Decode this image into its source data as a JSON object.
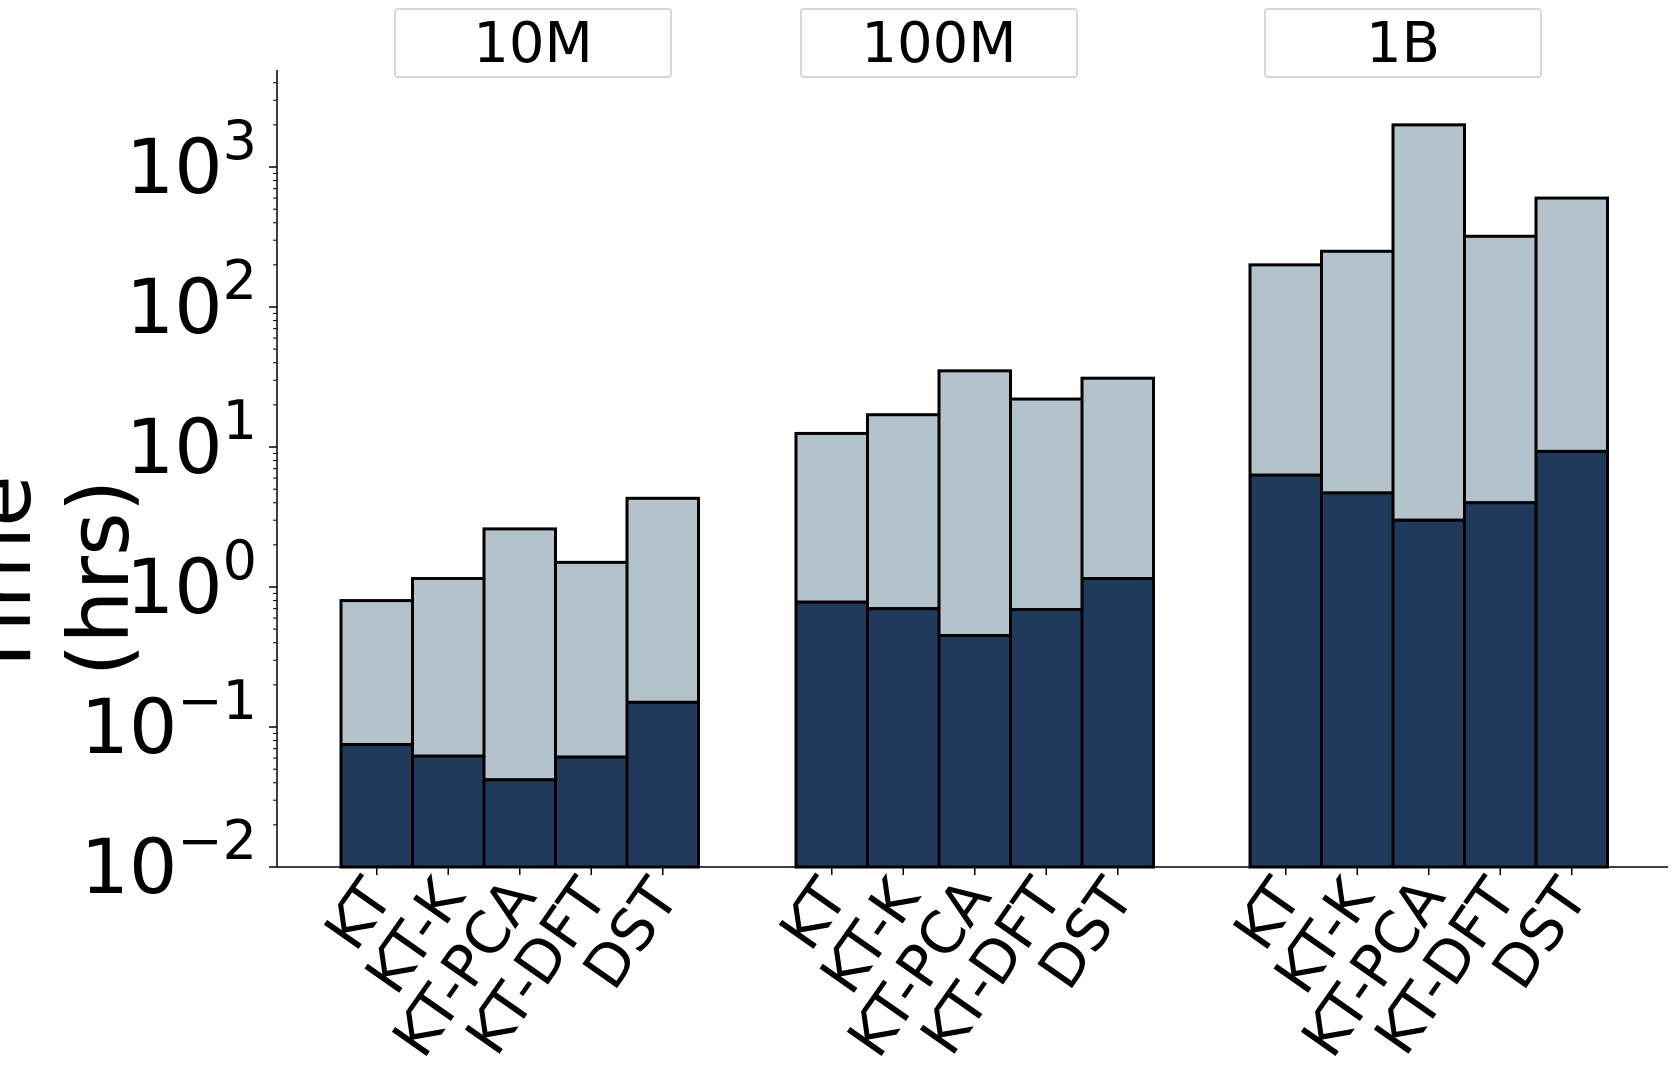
{
  "chart_data": {
    "type": "bar",
    "stacked": true,
    "ylabel": "Time (hrs)",
    "yscale": "log",
    "ylim": [
      0.01,
      5000
    ],
    "yticks": [
      {
        "value": 0.01,
        "base": "10",
        "exp": "−2"
      },
      {
        "value": 0.1,
        "base": "10",
        "exp": "−1"
      },
      {
        "value": 1,
        "base": "10",
        "exp": "0"
      },
      {
        "value": 10,
        "base": "10",
        "exp": "1"
      },
      {
        "value": 100,
        "base": "10",
        "exp": "2"
      },
      {
        "value": 1000,
        "base": "10",
        "exp": "3"
      }
    ],
    "categories": [
      "KT",
      "KT-K",
      "KT-PCA",
      "KT-DFT",
      "DST"
    ],
    "groups": [
      {
        "label": "10M",
        "bottom": [
          0.075,
          0.062,
          0.042,
          0.061,
          0.15
        ],
        "total": [
          0.8,
          1.15,
          2.6,
          1.5,
          4.3
        ]
      },
      {
        "label": "100M",
        "bottom": [
          0.78,
          0.7,
          0.45,
          0.69,
          1.15
        ],
        "total": [
          12.5,
          17,
          35,
          22,
          31
        ]
      },
      {
        "label": "1B",
        "bottom": [
          6.3,
          4.7,
          3.0,
          4.0,
          9.3
        ],
        "total": [
          200,
          250,
          2000,
          320,
          600
        ]
      }
    ],
    "colors": {
      "bottom": "#1f3a5a",
      "top": "#b4c2cc",
      "edge": "#000000"
    }
  }
}
